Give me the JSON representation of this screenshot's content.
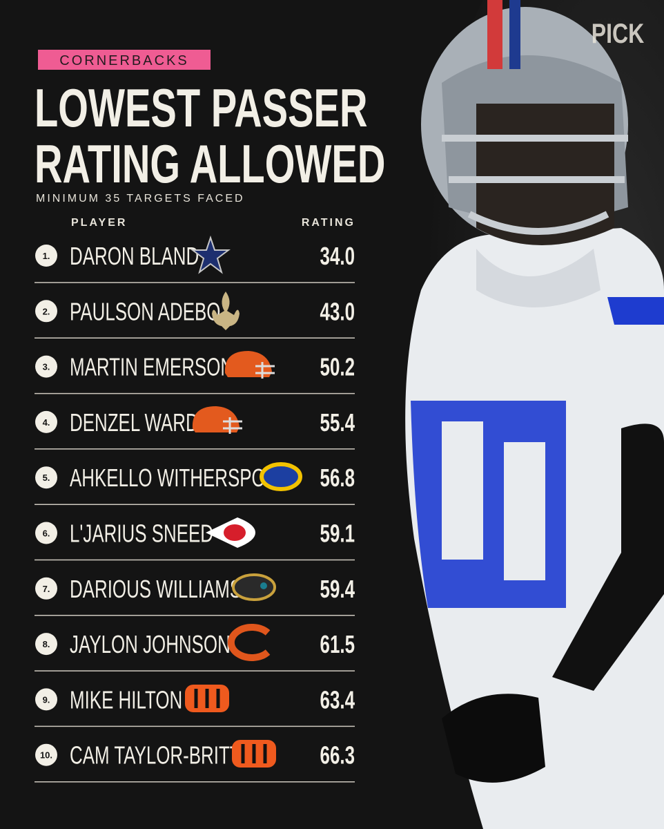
{
  "brand": "PICK",
  "badge": "CORNERBACKS",
  "title": [
    "LOWEST PASSER",
    "RATING ALLOWED"
  ],
  "subtitle": "MINIMUM 35 TARGETS FACED",
  "table": {
    "columns": [
      "PLAYER",
      "RATING"
    ],
    "rows": [
      [
        "1.",
        "DARON BLAND",
        "34.0"
      ],
      [
        "2.",
        "PAULSON ADEBO",
        "43.0"
      ],
      [
        "3.",
        "MARTIN EMERSON",
        "50.2"
      ],
      [
        "4.",
        "DENZEL WARD",
        "55.4"
      ],
      [
        "5.",
        "AHKELLO WITHERSPOON",
        "56.8"
      ],
      [
        "6.",
        "L'JARIUS SNEED",
        "59.1"
      ],
      [
        "7.",
        "DARIOUS WILLIAMS",
        "59.4"
      ],
      [
        "8.",
        "JAYLON JOHNSON",
        "61.5"
      ],
      [
        "9.",
        "MIKE HILTON",
        "63.4"
      ],
      [
        "10.",
        "CAM TAYLOR-BRITT",
        "66.3"
      ]
    ]
  }
}
